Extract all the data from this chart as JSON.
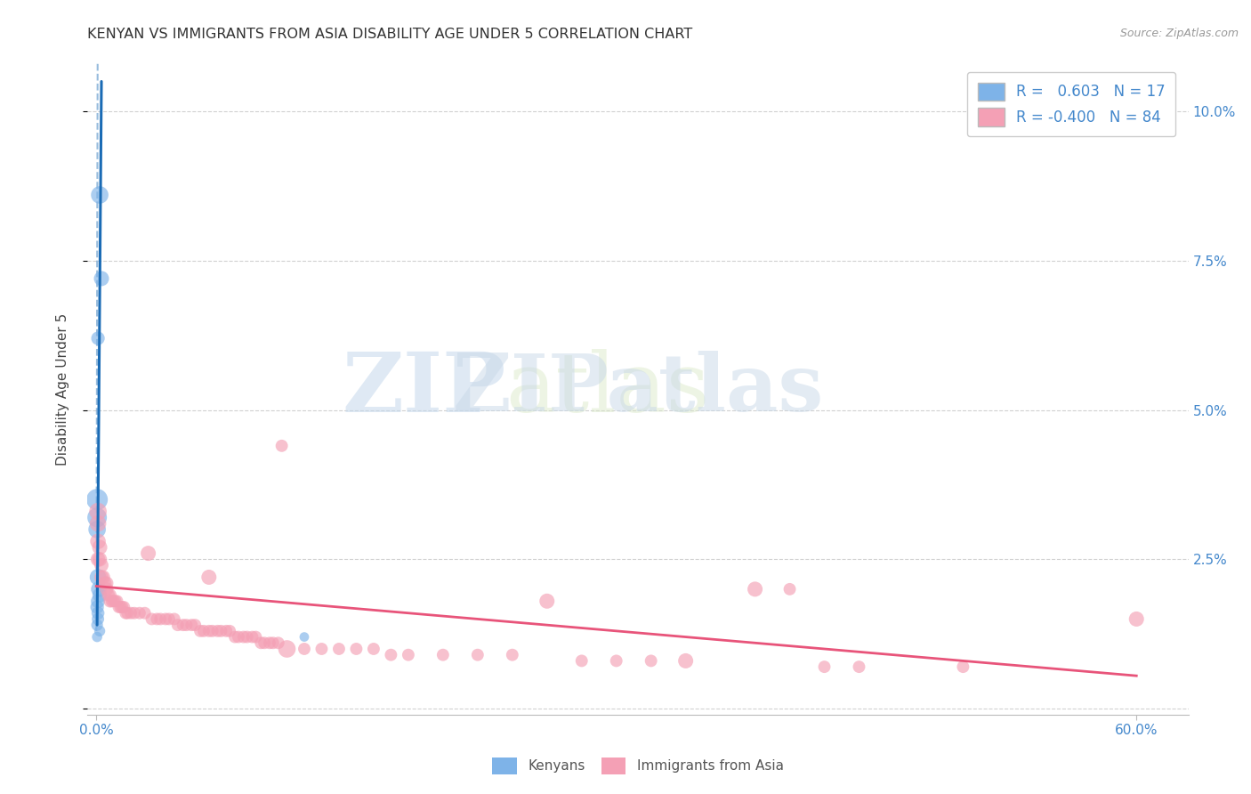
{
  "title": "KENYAN VS IMMIGRANTS FROM ASIA DISABILITY AGE UNDER 5 CORRELATION CHART",
  "source": "Source: ZipAtlas.com",
  "ylabel": "Disability Age Under 5",
  "xlabel": "",
  "xlim": [
    -0.5,
    63
  ],
  "ylim": [
    -0.1,
    10.8
  ],
  "xticks": [
    0,
    60
  ],
  "xtick_labels": [
    "0.0%",
    "60.0%"
  ],
  "yticks": [
    0,
    2.5,
    5.0,
    7.5,
    10.0
  ],
  "ytick_labels_right": [
    "",
    "2.5%",
    "5.0%",
    "7.5%",
    "10.0%"
  ],
  "kenyan_color": "#7EB3E8",
  "immigrant_color": "#F4A0B5",
  "kenyan_line_color": "#1A6BB5",
  "immigrant_line_color": "#E8547A",
  "kenyan_scatter": [
    [
      0.2,
      8.6
    ],
    [
      0.3,
      7.2
    ],
    [
      0.1,
      6.2
    ],
    [
      0.05,
      3.5
    ],
    [
      0.05,
      3.2
    ],
    [
      0.05,
      3.0
    ],
    [
      0.1,
      2.2
    ],
    [
      0.15,
      2.0
    ],
    [
      0.2,
      1.9
    ],
    [
      0.1,
      1.8
    ],
    [
      0.05,
      1.7
    ],
    [
      0.1,
      1.6
    ],
    [
      0.1,
      1.5
    ],
    [
      0.05,
      1.4
    ],
    [
      0.2,
      1.3
    ],
    [
      0.05,
      1.2
    ],
    [
      12.0,
      1.2
    ]
  ],
  "kenyan_sizes": [
    200,
    150,
    120,
    300,
    250,
    200,
    180,
    160,
    140,
    130,
    120,
    110,
    100,
    90,
    80,
    70,
    60
  ],
  "immigrant_scatter": [
    [
      0.1,
      3.3
    ],
    [
      0.1,
      3.1
    ],
    [
      0.1,
      2.8
    ],
    [
      0.2,
      2.7
    ],
    [
      0.1,
      2.5
    ],
    [
      0.2,
      2.5
    ],
    [
      0.3,
      2.4
    ],
    [
      0.3,
      2.2
    ],
    [
      0.4,
      2.2
    ],
    [
      0.5,
      2.1
    ],
    [
      0.6,
      2.1
    ],
    [
      0.6,
      2.0
    ],
    [
      0.7,
      1.9
    ],
    [
      0.8,
      1.9
    ],
    [
      0.8,
      1.8
    ],
    [
      0.9,
      1.8
    ],
    [
      1.0,
      1.8
    ],
    [
      1.1,
      1.8
    ],
    [
      1.2,
      1.8
    ],
    [
      1.3,
      1.7
    ],
    [
      1.4,
      1.7
    ],
    [
      1.5,
      1.7
    ],
    [
      1.6,
      1.7
    ],
    [
      1.7,
      1.6
    ],
    [
      1.8,
      1.6
    ],
    [
      2.0,
      1.6
    ],
    [
      2.2,
      1.6
    ],
    [
      2.5,
      1.6
    ],
    [
      2.8,
      1.6
    ],
    [
      3.0,
      2.6
    ],
    [
      3.2,
      1.5
    ],
    [
      3.5,
      1.5
    ],
    [
      3.7,
      1.5
    ],
    [
      4.0,
      1.5
    ],
    [
      4.2,
      1.5
    ],
    [
      4.5,
      1.5
    ],
    [
      4.7,
      1.4
    ],
    [
      5.0,
      1.4
    ],
    [
      5.2,
      1.4
    ],
    [
      5.5,
      1.4
    ],
    [
      5.7,
      1.4
    ],
    [
      6.0,
      1.3
    ],
    [
      6.2,
      1.3
    ],
    [
      6.5,
      1.3
    ],
    [
      6.5,
      2.2
    ],
    [
      6.7,
      1.3
    ],
    [
      7.0,
      1.3
    ],
    [
      7.2,
      1.3
    ],
    [
      7.5,
      1.3
    ],
    [
      7.7,
      1.3
    ],
    [
      8.0,
      1.2
    ],
    [
      8.2,
      1.2
    ],
    [
      8.5,
      1.2
    ],
    [
      8.7,
      1.2
    ],
    [
      9.0,
      1.2
    ],
    [
      9.2,
      1.2
    ],
    [
      9.5,
      1.1
    ],
    [
      9.7,
      1.1
    ],
    [
      10.0,
      1.1
    ],
    [
      10.2,
      1.1
    ],
    [
      10.5,
      1.1
    ],
    [
      10.7,
      4.4
    ],
    [
      11.0,
      1.0
    ],
    [
      12.0,
      1.0
    ],
    [
      13.0,
      1.0
    ],
    [
      14.0,
      1.0
    ],
    [
      15.0,
      1.0
    ],
    [
      16.0,
      1.0
    ],
    [
      17.0,
      0.9
    ],
    [
      18.0,
      0.9
    ],
    [
      20.0,
      0.9
    ],
    [
      22.0,
      0.9
    ],
    [
      24.0,
      0.9
    ],
    [
      26.0,
      1.8
    ],
    [
      28.0,
      0.8
    ],
    [
      30.0,
      0.8
    ],
    [
      32.0,
      0.8
    ],
    [
      34.0,
      0.8
    ],
    [
      38.0,
      2.0
    ],
    [
      40.0,
      2.0
    ],
    [
      42.0,
      0.7
    ],
    [
      44.0,
      0.7
    ],
    [
      50.0,
      0.7
    ],
    [
      60.0,
      1.5
    ]
  ],
  "immigrant_sizes": [
    200,
    180,
    160,
    150,
    140,
    140,
    130,
    130,
    130,
    120,
    120,
    120,
    110,
    110,
    110,
    100,
    100,
    100,
    100,
    100,
    100,
    100,
    100,
    100,
    100,
    100,
    100,
    100,
    100,
    150,
    100,
    100,
    100,
    100,
    100,
    100,
    100,
    100,
    100,
    100,
    100,
    100,
    100,
    100,
    150,
    100,
    100,
    100,
    100,
    100,
    100,
    100,
    100,
    100,
    100,
    100,
    100,
    100,
    100,
    100,
    100,
    100,
    200,
    100,
    100,
    100,
    100,
    100,
    100,
    100,
    100,
    100,
    100,
    150,
    100,
    100,
    100,
    150,
    150,
    100,
    100,
    100,
    100,
    150
  ],
  "watermark_zip": "ZIP",
  "watermark_atlas": "atlas",
  "background_color": "#FFFFFF",
  "grid_color": "#CCCCCC"
}
